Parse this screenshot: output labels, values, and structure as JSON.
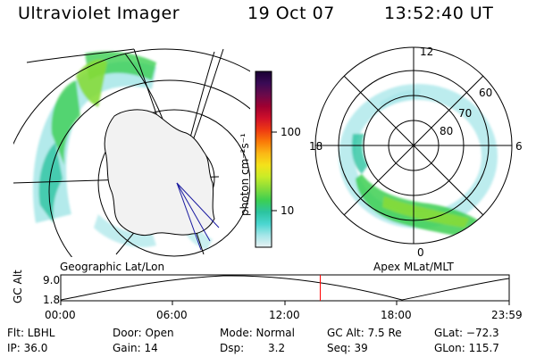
{
  "header": {
    "title": "Ultraviolet Imager",
    "date": "19 Oct 07",
    "time": "13:52:40 UT"
  },
  "left_map": {
    "label": "Geographic Lat/Lon"
  },
  "right_map": {
    "label": "Apex MLat/MLT",
    "mlt_labels": {
      "top": "12",
      "bottom": "0",
      "left": "18",
      "right": "6"
    },
    "mlat_labels": [
      "60",
      "70",
      "80"
    ]
  },
  "colorbar": {
    "unit_label": "photon cm⁻²s⁻¹",
    "ticks": [
      "100",
      "10"
    ],
    "colors": [
      "#1a0033",
      "#3a0a55",
      "#6a0a4a",
      "#a00030",
      "#d0102a",
      "#ee3a12",
      "#fa7a08",
      "#fbb815",
      "#f4e21a",
      "#c8ec28",
      "#86dc3a",
      "#3ccf52",
      "#2cc4a0",
      "#4ad6d0",
      "#a6e6e8",
      "#e8f2f4"
    ]
  },
  "altitude_plot": {
    "ylabel": "GC Alt",
    "yticks": [
      "9.0",
      "1.8"
    ],
    "xticks": [
      "00:00",
      "06:00",
      "12:00",
      "18:00",
      "23:59"
    ],
    "current_time_marker_color": "#ff0000"
  },
  "status": {
    "row1": {
      "flt": "Flt: LBHL",
      "door": "Door: Open",
      "mode": "Mode: Normal",
      "gc_alt": "GC Alt: 7.5 Re",
      "glat": "GLat: −72.3"
    },
    "row2": {
      "ip": "IP: 36.0",
      "gain": "Gain: 14",
      "dsp_label": "Dsp:",
      "dsp_value": "3.2",
      "seq": "Seq: 39",
      "glon": "GLon: 115.7"
    }
  }
}
